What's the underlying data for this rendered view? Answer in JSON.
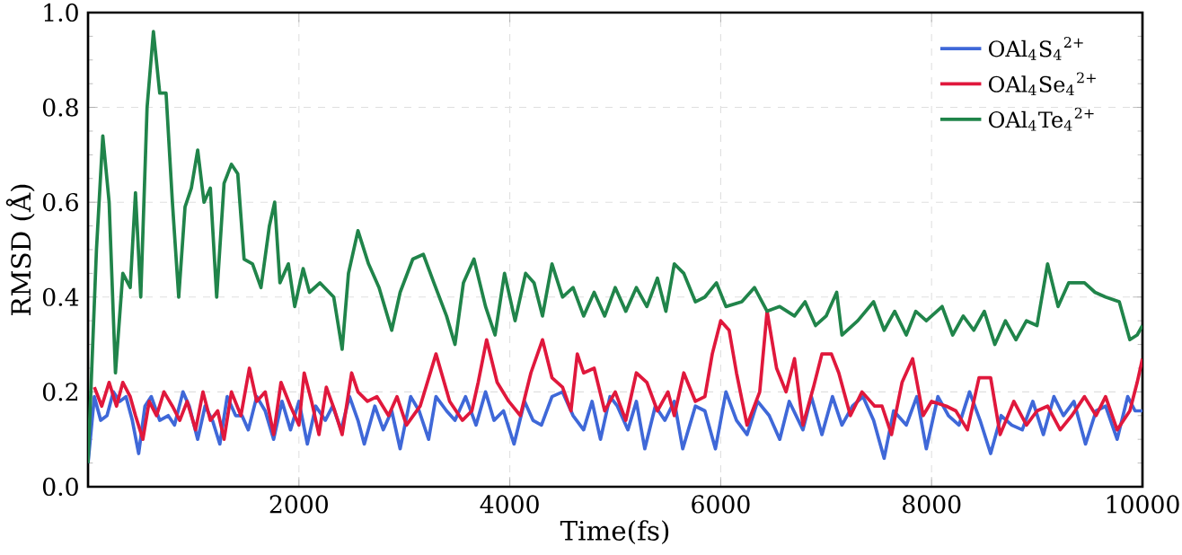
{
  "chart_data": {
    "type": "line",
    "xlabel": "Time(fs)",
    "ylabel": "RMSD (Å)",
    "xlim": [
      0,
      10000
    ],
    "xticks": [
      2000,
      4000,
      6000,
      8000,
      10000
    ],
    "ylim": [
      0,
      1.0
    ],
    "yticks": [
      {
        "value": 0,
        "label": "0.0"
      },
      {
        "value": 0.2,
        "label": "0.2"
      },
      {
        "value": 0.4,
        "label": "0.4"
      },
      {
        "value": 0.6,
        "label": "0.6"
      },
      {
        "value": 0.8,
        "label": "0.8"
      },
      {
        "value": 1.0,
        "label": "1.0"
      }
    ],
    "grid": true,
    "legend": "top right",
    "marker": "none",
    "line_style": "solid",
    "series": [
      {
        "name": "OAl$_{4}$S$_{4}$$^{2+}$",
        "color": "#3f68d8",
        "x": [
          0,
          60,
          120,
          180,
          240,
          300,
          360,
          420,
          480,
          540,
          600,
          680,
          760,
          820,
          900,
          960,
          1040,
          1110,
          1180,
          1250,
          1320,
          1400,
          1460,
          1520,
          1600,
          1680,
          1760,
          1840,
          1920,
          2000,
          2080,
          2160,
          2250,
          2320,
          2400,
          2480,
          2560,
          2620,
          2720,
          2800,
          2880,
          2960,
          3060,
          3140,
          3230,
          3300,
          3400,
          3480,
          3580,
          3680,
          3770,
          3850,
          3940,
          4040,
          4140,
          4220,
          4300,
          4400,
          4500,
          4600,
          4700,
          4780,
          4860,
          4950,
          5020,
          5120,
          5200,
          5280,
          5380,
          5470,
          5560,
          5640,
          5760,
          5850,
          5950,
          6050,
          6150,
          6250,
          6350,
          6460,
          6560,
          6650,
          6780,
          6860,
          6960,
          7060,
          7150,
          7250,
          7350,
          7450,
          7550,
          7640,
          7760,
          7860,
          7950,
          8060,
          8160,
          8260,
          8360,
          8460,
          8560,
          8660,
          8760,
          8860,
          8960,
          9060,
          9160,
          9250,
          9350,
          9460,
          9560,
          9650,
          9760,
          9860,
          9930,
          10000
        ],
        "values": [
          0.05,
          0.19,
          0.14,
          0.15,
          0.2,
          0.18,
          0.19,
          0.14,
          0.07,
          0.17,
          0.19,
          0.14,
          0.15,
          0.13,
          0.2,
          0.17,
          0.1,
          0.17,
          0.14,
          0.09,
          0.19,
          0.15,
          0.15,
          0.12,
          0.19,
          0.16,
          0.1,
          0.18,
          0.12,
          0.18,
          0.09,
          0.17,
          0.14,
          0.17,
          0.12,
          0.19,
          0.14,
          0.09,
          0.17,
          0.12,
          0.16,
          0.08,
          0.19,
          0.16,
          0.1,
          0.19,
          0.16,
          0.14,
          0.19,
          0.13,
          0.2,
          0.14,
          0.16,
          0.09,
          0.18,
          0.14,
          0.13,
          0.19,
          0.2,
          0.15,
          0.12,
          0.18,
          0.1,
          0.19,
          0.17,
          0.12,
          0.18,
          0.08,
          0.17,
          0.14,
          0.18,
          0.08,
          0.17,
          0.16,
          0.08,
          0.2,
          0.14,
          0.11,
          0.18,
          0.15,
          0.1,
          0.18,
          0.12,
          0.19,
          0.11,
          0.19,
          0.13,
          0.17,
          0.19,
          0.14,
          0.06,
          0.16,
          0.13,
          0.19,
          0.08,
          0.19,
          0.15,
          0.13,
          0.2,
          0.14,
          0.07,
          0.15,
          0.13,
          0.12,
          0.18,
          0.11,
          0.19,
          0.15,
          0.18,
          0.09,
          0.16,
          0.17,
          0.1,
          0.19,
          0.16,
          0.16
        ]
      },
      {
        "name": "OAl$_{4}$Se$_{4}$$^{2+}$",
        "color": "#e0183c",
        "x": [
          60,
          130,
          200,
          270,
          330,
          400,
          450,
          520,
          580,
          650,
          720,
          800,
          870,
          940,
          1020,
          1090,
          1160,
          1230,
          1290,
          1360,
          1450,
          1530,
          1600,
          1680,
          1760,
          1830,
          1920,
          2000,
          2050,
          2120,
          2190,
          2260,
          2340,
          2410,
          2500,
          2560,
          2650,
          2740,
          2850,
          2930,
          3020,
          3150,
          3300,
          3430,
          3550,
          3640,
          3700,
          3780,
          3880,
          3990,
          4100,
          4200,
          4310,
          4400,
          4500,
          4580,
          4640,
          4700,
          4800,
          4900,
          5000,
          5100,
          5200,
          5300,
          5400,
          5500,
          5560,
          5650,
          5760,
          5850,
          5920,
          6000,
          6080,
          6150,
          6250,
          6370,
          6440,
          6530,
          6620,
          6700,
          6780,
          6880,
          6960,
          7050,
          7120,
          7230,
          7340,
          7460,
          7530,
          7620,
          7720,
          7820,
          7920,
          8000,
          8140,
          8230,
          8340,
          8450,
          8560,
          8650,
          8780,
          8900,
          9000,
          9100,
          9220,
          9330,
          9450,
          9560,
          9650,
          9760,
          9880,
          9950,
          10000
        ],
        "values": [
          0.21,
          0.17,
          0.22,
          0.17,
          0.22,
          0.19,
          0.15,
          0.1,
          0.18,
          0.15,
          0.2,
          0.17,
          0.14,
          0.18,
          0.12,
          0.2,
          0.14,
          0.16,
          0.1,
          0.2,
          0.15,
          0.25,
          0.18,
          0.2,
          0.11,
          0.22,
          0.17,
          0.13,
          0.24,
          0.18,
          0.11,
          0.21,
          0.16,
          0.11,
          0.24,
          0.2,
          0.18,
          0.19,
          0.15,
          0.19,
          0.13,
          0.17,
          0.28,
          0.18,
          0.14,
          0.16,
          0.22,
          0.31,
          0.22,
          0.18,
          0.15,
          0.24,
          0.31,
          0.23,
          0.21,
          0.16,
          0.28,
          0.24,
          0.25,
          0.16,
          0.2,
          0.14,
          0.24,
          0.22,
          0.16,
          0.2,
          0.15,
          0.24,
          0.18,
          0.19,
          0.28,
          0.35,
          0.33,
          0.24,
          0.13,
          0.2,
          0.37,
          0.25,
          0.2,
          0.27,
          0.13,
          0.21,
          0.28,
          0.28,
          0.24,
          0.15,
          0.2,
          0.17,
          0.17,
          0.11,
          0.22,
          0.27,
          0.15,
          0.18,
          0.17,
          0.16,
          0.12,
          0.23,
          0.23,
          0.11,
          0.18,
          0.13,
          0.16,
          0.17,
          0.12,
          0.15,
          0.19,
          0.15,
          0.19,
          0.12,
          0.16,
          0.22,
          0.27
        ]
      },
      {
        "name": "OAl$_{4}$Te$_{4}$$^{2+}$",
        "color": "#20844a",
        "x": [
          0,
          80,
          140,
          200,
          260,
          330,
          400,
          450,
          500,
          560,
          620,
          680,
          740,
          800,
          860,
          920,
          980,
          1040,
          1100,
          1160,
          1220,
          1290,
          1360,
          1420,
          1480,
          1560,
          1640,
          1720,
          1770,
          1820,
          1900,
          1960,
          2040,
          2100,
          2200,
          2330,
          2410,
          2470,
          2560,
          2660,
          2760,
          2880,
          2960,
          3080,
          3180,
          3280,
          3400,
          3480,
          3560,
          3660,
          3770,
          3860,
          3950,
          4050,
          4150,
          4230,
          4310,
          4400,
          4500,
          4600,
          4700,
          4800,
          4900,
          5000,
          5100,
          5200,
          5300,
          5400,
          5480,
          5560,
          5650,
          5760,
          5850,
          5960,
          6050,
          6200,
          6320,
          6440,
          6560,
          6700,
          6800,
          6900,
          7000,
          7100,
          7150,
          7300,
          7450,
          7550,
          7650,
          7760,
          7850,
          7950,
          8100,
          8200,
          8300,
          8400,
          8500,
          8600,
          8700,
          8800,
          8900,
          9000,
          9100,
          9200,
          9300,
          9450,
          9550,
          9650,
          9780,
          9880,
          9950,
          10000
        ],
        "values": [
          0.05,
          0.5,
          0.74,
          0.6,
          0.24,
          0.45,
          0.42,
          0.62,
          0.4,
          0.8,
          0.96,
          0.83,
          0.83,
          0.6,
          0.4,
          0.59,
          0.63,
          0.71,
          0.6,
          0.63,
          0.4,
          0.64,
          0.68,
          0.66,
          0.48,
          0.47,
          0.42,
          0.55,
          0.6,
          0.43,
          0.47,
          0.38,
          0.46,
          0.41,
          0.43,
          0.4,
          0.29,
          0.45,
          0.54,
          0.47,
          0.42,
          0.33,
          0.41,
          0.48,
          0.49,
          0.43,
          0.36,
          0.3,
          0.43,
          0.48,
          0.38,
          0.32,
          0.45,
          0.35,
          0.45,
          0.43,
          0.36,
          0.47,
          0.4,
          0.42,
          0.36,
          0.41,
          0.36,
          0.42,
          0.37,
          0.42,
          0.38,
          0.44,
          0.37,
          0.47,
          0.45,
          0.39,
          0.4,
          0.43,
          0.38,
          0.39,
          0.42,
          0.37,
          0.38,
          0.36,
          0.39,
          0.34,
          0.36,
          0.41,
          0.32,
          0.35,
          0.39,
          0.33,
          0.37,
          0.32,
          0.37,
          0.35,
          0.38,
          0.32,
          0.36,
          0.33,
          0.37,
          0.3,
          0.35,
          0.31,
          0.35,
          0.34,
          0.47,
          0.38,
          0.43,
          0.43,
          0.41,
          0.4,
          0.39,
          0.31,
          0.32,
          0.34
        ]
      }
    ]
  }
}
